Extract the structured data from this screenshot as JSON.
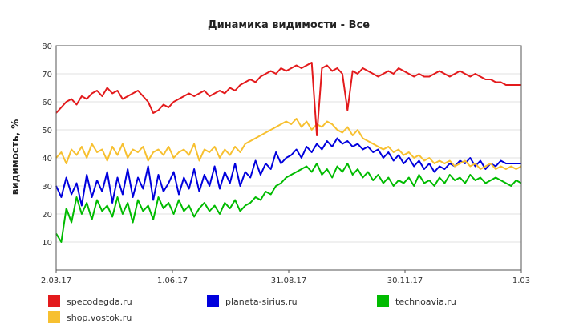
{
  "chart_data": {
    "type": "line",
    "title": "Динамика видимости - Все",
    "xlabel": "",
    "ylabel": "видимость, %",
    "ylim": [
      0,
      80
    ],
    "y_ticks": [
      "10",
      "20",
      "30",
      "40",
      "50",
      "60",
      "70",
      "80"
    ],
    "x_tick_labels": [
      "2.03.17",
      "1.06.17",
      "31.08.17",
      "30.11.17",
      "1.03"
    ],
    "grid": "horizontal",
    "legend_position": "bottom",
    "x": [
      0,
      4,
      8,
      12,
      16,
      20,
      24,
      28,
      32,
      36,
      40,
      44,
      48,
      52,
      56,
      60,
      64,
      68,
      72,
      76,
      80,
      84,
      88,
      92,
      96,
      100,
      104,
      108,
      112,
      116,
      120,
      124,
      128,
      132,
      136,
      140,
      144,
      148,
      152,
      156,
      160,
      164,
      168,
      172,
      176,
      180,
      184,
      188,
      192,
      196,
      200,
      204,
      208,
      212,
      216,
      220,
      224,
      228,
      232,
      236,
      240,
      244,
      248,
      252,
      256,
      260,
      264,
      268,
      272,
      276,
      280,
      284,
      288,
      292,
      296,
      300,
      304,
      308,
      312,
      316,
      320,
      324,
      328,
      332,
      336,
      340,
      344,
      348,
      352,
      356,
      360,
      364
    ],
    "series": [
      {
        "name": "specodegda.ru",
        "color": "#e31a1c",
        "values": [
          56,
          58,
          60,
          61,
          59,
          62,
          61,
          63,
          64,
          62,
          65,
          63,
          64,
          61,
          62,
          63,
          64,
          62,
          60,
          56,
          57,
          59,
          58,
          60,
          61,
          62,
          63,
          62,
          63,
          64,
          62,
          63,
          64,
          63,
          65,
          64,
          66,
          67,
          68,
          67,
          69,
          70,
          71,
          70,
          72,
          71,
          72,
          73,
          72,
          73,
          74,
          48,
          72,
          73,
          71,
          72,
          70,
          57,
          71,
          70,
          72,
          71,
          70,
          69,
          70,
          71,
          70,
          72,
          71,
          70,
          69,
          70,
          69,
          69,
          70,
          71,
          70,
          69,
          70,
          71,
          70,
          69,
          70,
          69,
          68,
          68,
          67,
          67,
          66,
          66,
          66,
          66
        ]
      },
      {
        "name": "planeta-sirius.ru",
        "color": "#0000dd",
        "values": [
          30,
          26,
          33,
          27,
          31,
          23,
          34,
          26,
          32,
          28,
          35,
          24,
          33,
          27,
          36,
          26,
          33,
          29,
          37,
          25,
          34,
          28,
          31,
          35,
          27,
          33,
          29,
          36,
          28,
          34,
          30,
          37,
          29,
          35,
          31,
          38,
          30,
          35,
          33,
          39,
          34,
          38,
          36,
          42,
          38,
          40,
          41,
          43,
          40,
          44,
          42,
          45,
          43,
          46,
          44,
          47,
          45,
          46,
          44,
          45,
          43,
          44,
          42,
          43,
          40,
          42,
          39,
          41,
          38,
          40,
          37,
          39,
          36,
          38,
          35,
          37,
          36,
          38,
          37,
          39,
          38,
          40,
          37,
          39,
          36,
          38,
          37,
          39,
          38,
          38,
          38,
          38
        ]
      },
      {
        "name": "technoavia.ru",
        "color": "#00bb00",
        "values": [
          13,
          10,
          22,
          17,
          26,
          20,
          24,
          18,
          25,
          21,
          23,
          19,
          26,
          20,
          24,
          17,
          25,
          21,
          23,
          18,
          26,
          22,
          24,
          20,
          25,
          21,
          23,
          19,
          22,
          24,
          21,
          23,
          20,
          24,
          22,
          25,
          21,
          23,
          24,
          26,
          25,
          28,
          27,
          30,
          31,
          33,
          34,
          35,
          36,
          37,
          35,
          38,
          34,
          36,
          33,
          37,
          35,
          38,
          34,
          36,
          33,
          35,
          32,
          34,
          31,
          33,
          30,
          32,
          31,
          33,
          30,
          34,
          31,
          32,
          30,
          33,
          31,
          34,
          32,
          33,
          31,
          34,
          32,
          33,
          31,
          32,
          33,
          32,
          31,
          30,
          32,
          31
        ]
      },
      {
        "name": "shop.vostok.ru",
        "color": "#f7c030",
        "values": [
          40,
          42,
          38,
          43,
          41,
          44,
          40,
          45,
          42,
          43,
          39,
          44,
          41,
          45,
          40,
          43,
          42,
          44,
          39,
          42,
          43,
          41,
          44,
          40,
          42,
          43,
          41,
          45,
          39,
          43,
          42,
          44,
          40,
          43,
          41,
          44,
          42,
          45,
          46,
          47,
          48,
          49,
          50,
          51,
          52,
          53,
          52,
          54,
          51,
          53,
          50,
          52,
          51,
          53,
          52,
          50,
          49,
          51,
          48,
          50,
          47,
          46,
          45,
          44,
          43,
          44,
          42,
          43,
          41,
          42,
          40,
          41,
          39,
          40,
          38,
          39,
          38,
          39,
          37,
          38,
          39,
          37,
          38,
          36,
          37,
          38,
          36,
          37,
          36,
          37,
          36,
          37
        ]
      }
    ]
  }
}
